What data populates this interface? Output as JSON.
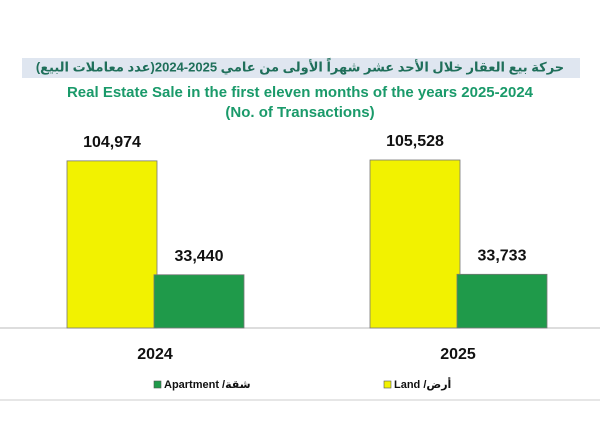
{
  "chart_data": {
    "type": "bar",
    "title_ar": "حركة بيع العقار خلال الأحد عشر شهراً الأولى من عامي 2025-2024(عدد معاملات البيع)",
    "title": "Real Estate Sale in the first eleven  months of the years 2025-2024",
    "subtitle": "(No. of Transactions)",
    "categories": [
      "2024",
      "2025"
    ],
    "series": [
      {
        "name": "Land /أرض",
        "color": "#f2f200",
        "values": [
          104974,
          105528
        ],
        "value_labels": [
          "104,974",
          "105,528"
        ]
      },
      {
        "name": "Apartment /شقة",
        "color": "#1f9a4a",
        "values": [
          33440,
          33733
        ],
        "value_labels": [
          "33,440",
          "33,733"
        ]
      }
    ]
  }
}
